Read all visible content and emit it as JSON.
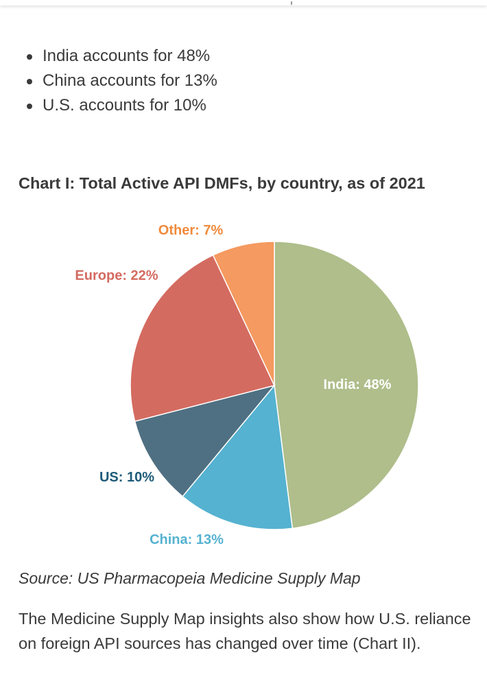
{
  "bullets": [
    "India accounts for 48%",
    "China accounts for 13%",
    "U.S. accounts for 10%"
  ],
  "chart_data": {
    "type": "pie",
    "title": "Chart I: Total Active API DMFs, by country, as of 2021",
    "slices": [
      {
        "label": "India: 48%",
        "value": 48,
        "color": "#afbe8b",
        "label_color": "#ffffff"
      },
      {
        "label": "China: 13%",
        "value": 13,
        "color": "#55b2d0",
        "label_color": "#55b2d0"
      },
      {
        "label": "US: 10%",
        "value": 10,
        "color": "#4f7082",
        "label_color": "#1d5a78"
      },
      {
        "label": "Europe: 22%",
        "value": 22,
        "color": "#d46b60",
        "label_color": "#d46b60"
      },
      {
        "label": "Other: 7%",
        "value": 7,
        "color": "#f59a60",
        "label_color": "#f08a3c"
      }
    ]
  },
  "source": "Source: US Pharmacopeia Medicine Supply Map",
  "body_text": "The Medicine Supply Map insights also show how U.S. reliance on foreign API sources has changed over time (Chart II)."
}
